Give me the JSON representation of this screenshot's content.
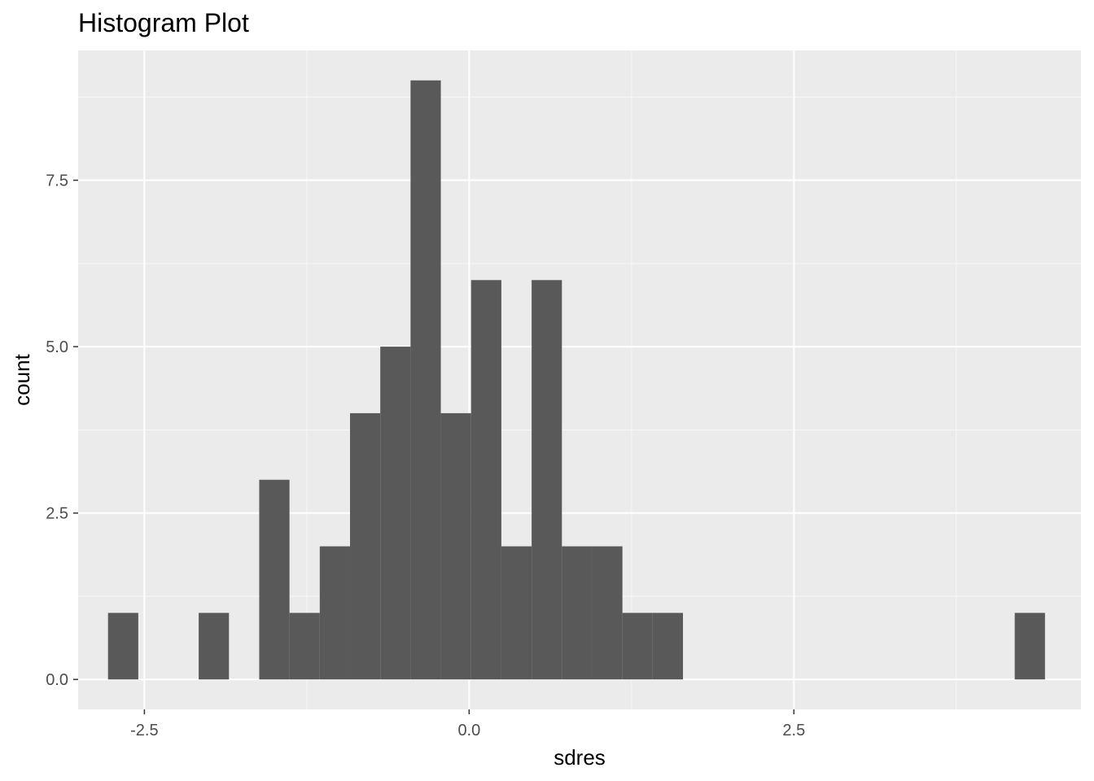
{
  "chart_data": {
    "type": "bar",
    "title": "Histogram Plot",
    "xlabel": "sdres",
    "ylabel": "count",
    "xlim": [
      -3.01,
      4.71
    ],
    "ylim": [
      -0.45,
      9.45
    ],
    "x_ticks": [
      -2.5,
      0.0,
      2.5
    ],
    "x_tick_labels": [
      "-2.5",
      "0.0",
      "2.5"
    ],
    "y_ticks": [
      0.0,
      2.5,
      5.0,
      7.5
    ],
    "y_tick_labels": [
      "0.0",
      "2.5",
      "5.0",
      "7.5"
    ],
    "grid": true,
    "bin_width": 0.233,
    "bins": [
      {
        "x0": -2.78,
        "x1": -2.547,
        "count": 1
      },
      {
        "x0": -2.082,
        "x1": -1.849,
        "count": 1
      },
      {
        "x0": -1.616,
        "x1": -1.383,
        "count": 3
      },
      {
        "x0": -1.383,
        "x1": -1.15,
        "count": 1
      },
      {
        "x0": -1.15,
        "x1": -0.917,
        "count": 2
      },
      {
        "x0": -0.917,
        "x1": -0.684,
        "count": 4
      },
      {
        "x0": -0.684,
        "x1": -0.451,
        "count": 5
      },
      {
        "x0": -0.451,
        "x1": -0.218,
        "count": 9
      },
      {
        "x0": -0.218,
        "x1": 0.015,
        "count": 4
      },
      {
        "x0": 0.015,
        "x1": 0.248,
        "count": 6
      },
      {
        "x0": 0.248,
        "x1": 0.481,
        "count": 2
      },
      {
        "x0": 0.481,
        "x1": 0.714,
        "count": 6
      },
      {
        "x0": 0.714,
        "x1": 0.947,
        "count": 2
      },
      {
        "x0": 0.947,
        "x1": 1.18,
        "count": 2
      },
      {
        "x0": 1.18,
        "x1": 1.413,
        "count": 1
      },
      {
        "x0": 1.413,
        "x1": 1.646,
        "count": 1
      },
      {
        "x0": 4.2,
        "x1": 4.433,
        "count": 1
      }
    ],
    "colors": {
      "panel": "#ebebeb",
      "grid_major": "#ffffff",
      "grid_minor": "#f7f7f7",
      "bar": "#595959",
      "tick": "#333333"
    }
  }
}
